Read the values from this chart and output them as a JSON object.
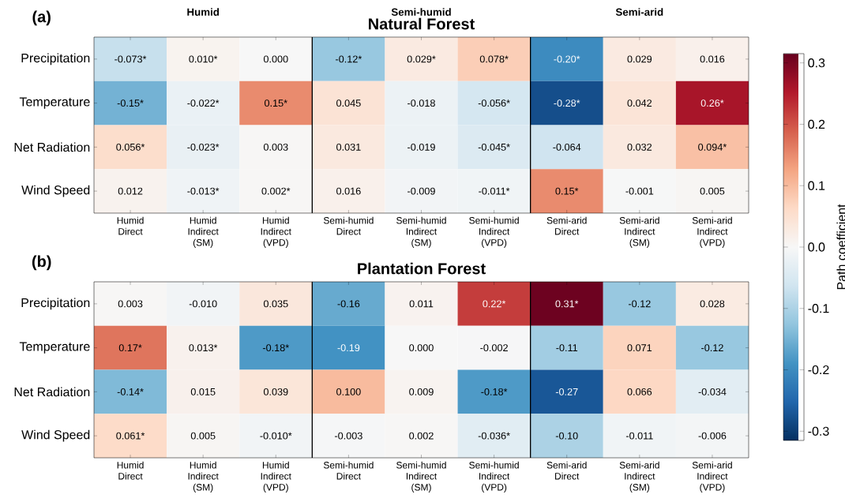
{
  "chart_data": [
    {
      "type": "heatmap",
      "title": "Natural Forest",
      "annotations": [
        "(a)",
        "Humid",
        "Semi-humid",
        "Semi-arid"
      ],
      "categories": [
        "Humid Direct",
        "Humid Indirect (SM)",
        "Humid Indirect (VPD)",
        "Semi-humid Direct",
        "Semi-humid Indirect (SM)",
        "Semi-humid Indirect (VPD)",
        "Semi-arid Direct",
        "Semi-arid Indirect (SM)",
        "Semi-arid Indirect (VPD)"
      ],
      "y_categories": [
        "Precipitation",
        "Temperature",
        "Net Radiation",
        "Wind Speed"
      ],
      "cells": [
        [
          -0.073,
          0.01,
          0.0,
          -0.12,
          0.029,
          0.078,
          -0.2,
          0.029,
          0.016
        ],
        [
          -0.15,
          -0.022,
          0.15,
          0.045,
          -0.018,
          -0.056,
          -0.28,
          0.042,
          0.26
        ],
        [
          0.056,
          -0.023,
          0.003,
          0.031,
          -0.019,
          -0.045,
          -0.064,
          0.032,
          0.094
        ],
        [
          0.012,
          -0.013,
          0.002,
          0.016,
          -0.009,
          -0.011,
          0.15,
          -0.001,
          0.005
        ]
      ],
      "cell_labels": [
        [
          "-0.073*",
          "0.010*",
          "0.000",
          "-0.12*",
          "0.029*",
          "0.078*",
          "-0.20*",
          "0.029",
          "0.016"
        ],
        [
          "-0.15*",
          "-0.022*",
          "0.15*",
          "0.045",
          "-0.018",
          "-0.056*",
          "-0.28*",
          "0.042",
          "0.26*"
        ],
        [
          "0.056*",
          "-0.023*",
          "0.003",
          "0.031",
          "-0.019",
          "-0.045*",
          "-0.064",
          "0.032",
          "0.094*"
        ],
        [
          "0.012",
          "-0.013*",
          "0.002*",
          "0.016",
          "-0.009",
          "-0.011*",
          "0.15*",
          "-0.001",
          "0.005"
        ]
      ],
      "clim": [
        -0.315,
        0.315
      ],
      "clabel": "Path coefficient",
      "cticks": [
        -0.3,
        -0.2,
        -0.1,
        {
          "value": 0,
          "label": "0.0"
        },
        0.1,
        0.2,
        0.3
      ]
    },
    {
      "type": "heatmap",
      "title": "Plantation Forest",
      "annotations": [
        "(b)"
      ],
      "categories": [
        "Humid Direct",
        "Humid Indirect (SM)",
        "Humid Indirect (VPD)",
        "Semi-humid Direct",
        "Semi-humid Indirect (SM)",
        "Semi-humid Indirect (VPD)",
        "Semi-arid Direct",
        "Semi-arid Indirect (SM)",
        "Semi-arid Indirect (VPD)"
      ],
      "y_categories": [
        "Precipitation",
        "Temperature",
        "Net Radiation",
        "Wind Speed"
      ],
      "cells": [
        [
          0.003,
          -0.01,
          0.035,
          -0.16,
          0.011,
          0.22,
          0.31,
          -0.12,
          0.028
        ],
        [
          0.17,
          0.013,
          -0.18,
          -0.19,
          0.0,
          -0.002,
          -0.11,
          0.071,
          -0.12
        ],
        [
          -0.14,
          0.015,
          0.039,
          0.1,
          0.009,
          -0.18,
          -0.27,
          0.066,
          -0.034
        ],
        [
          0.061,
          0.005,
          -0.01,
          -0.003,
          0.002,
          -0.036,
          -0.1,
          -0.011,
          -0.006
        ]
      ],
      "cell_labels": [
        [
          "0.003",
          "-0.010",
          "0.035",
          "-0.16",
          "0.011",
          "0.22*",
          "0.31*",
          "-0.12",
          "0.028"
        ],
        [
          "0.17*",
          "0.013*",
          "-0.18*",
          "-0.19",
          "0.000",
          "-0.002",
          "-0.11",
          "0.071",
          "-0.12"
        ],
        [
          "-0.14*",
          "0.015",
          "0.039",
          "0.100",
          "0.009",
          "-0.18*",
          "-0.27",
          "0.066",
          "-0.034"
        ],
        [
          "0.061*",
          "0.005",
          "-0.010*",
          "-0.003",
          "0.002",
          "-0.036*",
          "-0.10",
          "-0.011",
          "-0.006"
        ]
      ]
    }
  ]
}
